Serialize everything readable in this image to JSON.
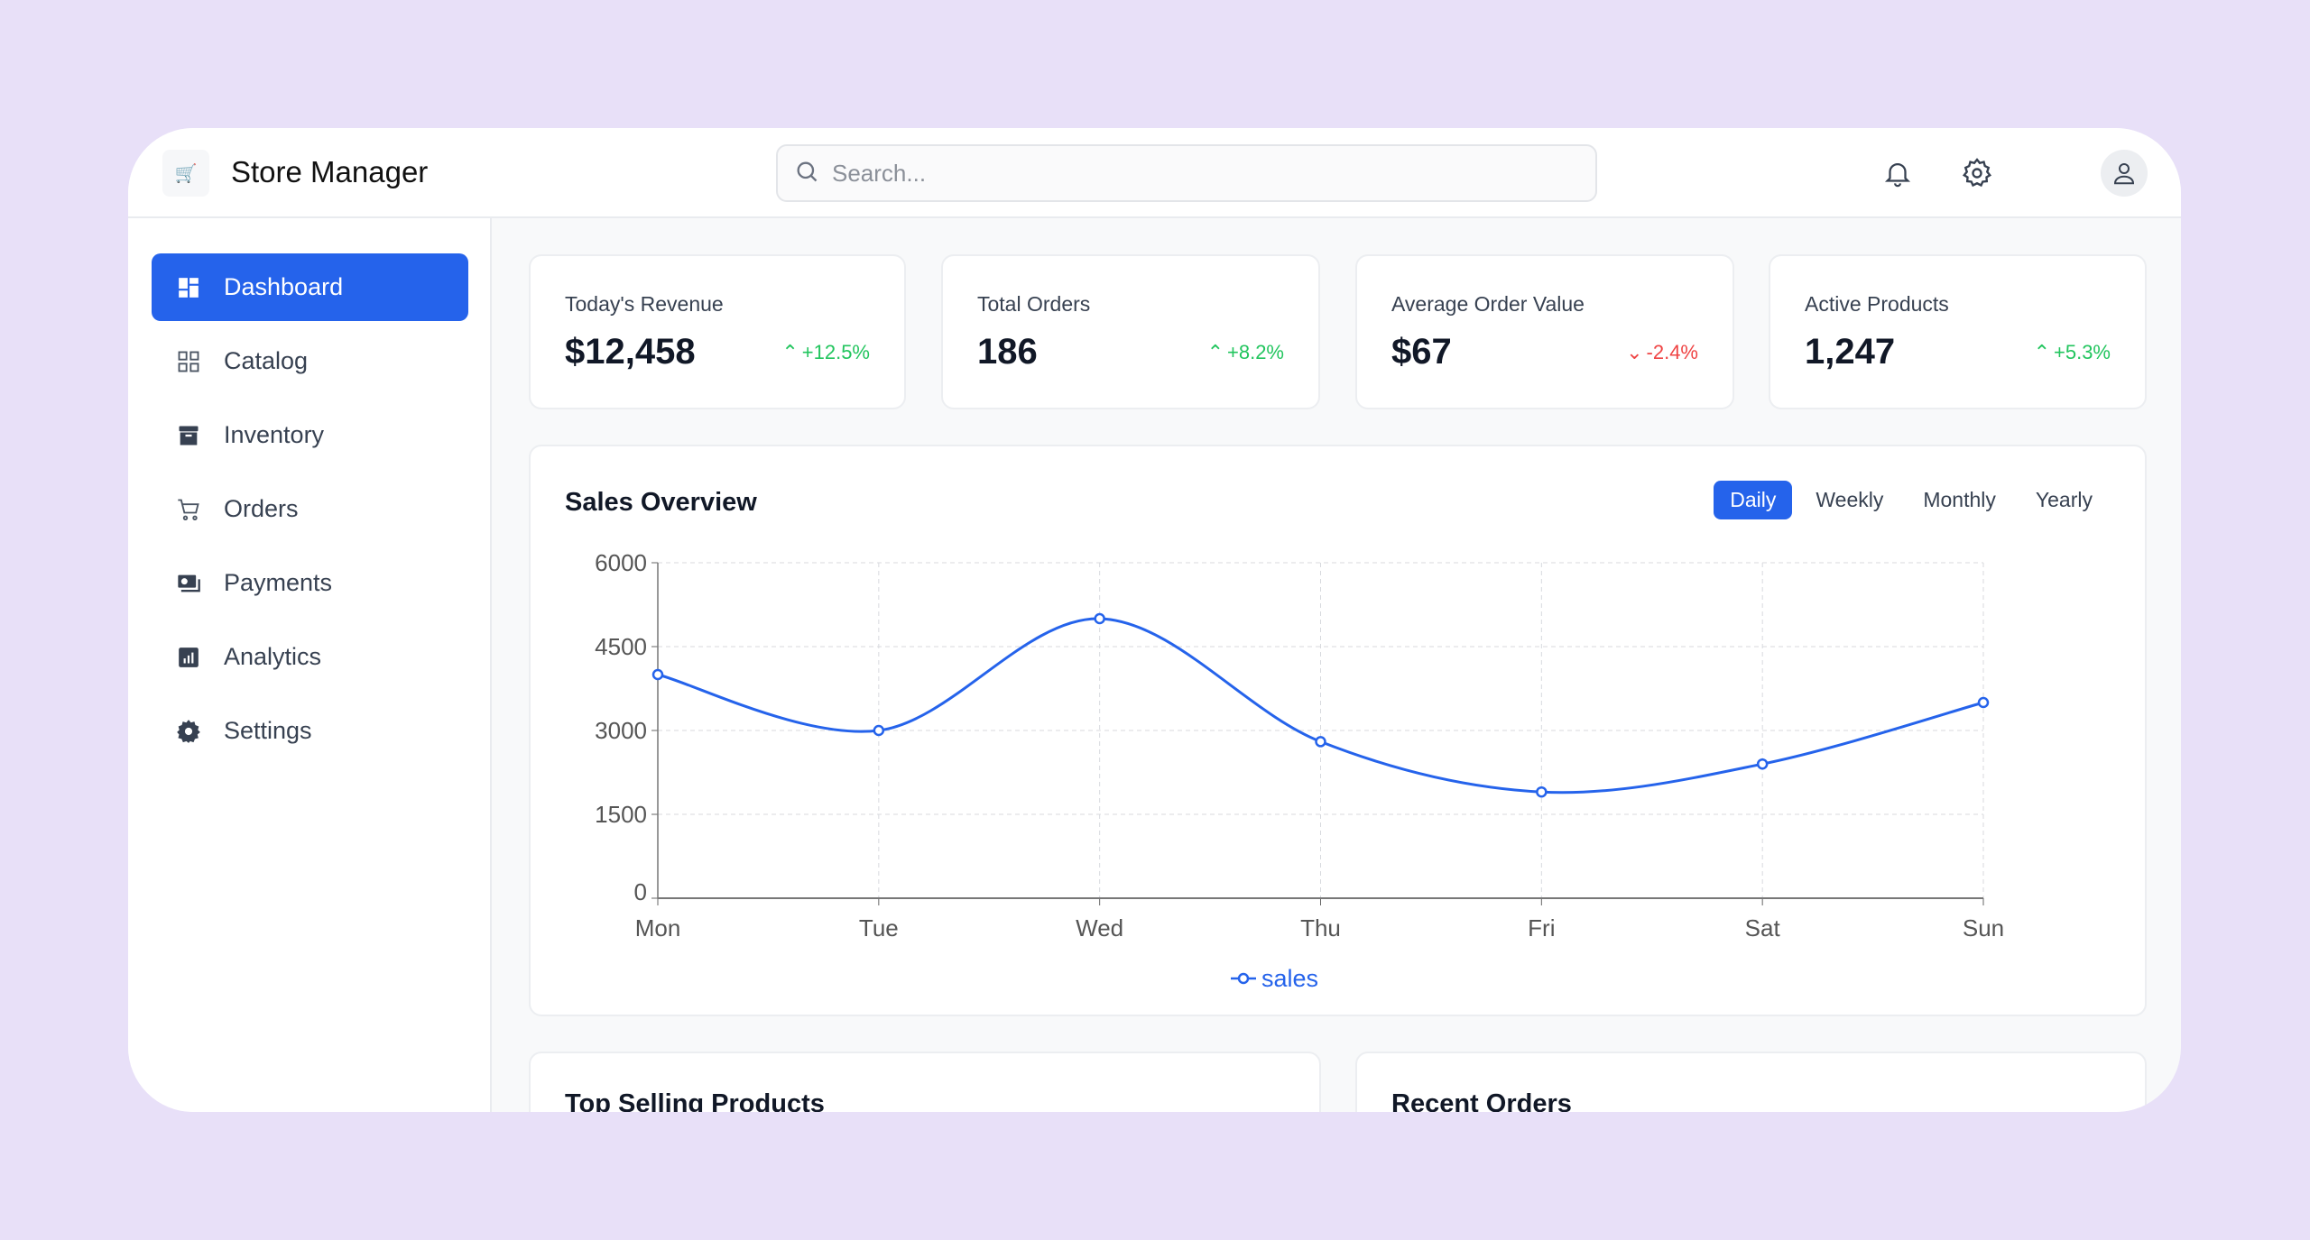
{
  "header": {
    "title": "Store Manager",
    "logo_icon": "cart-icon",
    "search_placeholder": "Search..."
  },
  "sidebar": {
    "items": [
      {
        "label": "Dashboard",
        "icon": "dashboard-icon",
        "active": true
      },
      {
        "label": "Catalog",
        "icon": "grid-icon"
      },
      {
        "label": "Inventory",
        "icon": "archive-icon"
      },
      {
        "label": "Orders",
        "icon": "cart-icon"
      },
      {
        "label": "Payments",
        "icon": "money-icon"
      },
      {
        "label": "Analytics",
        "icon": "chart-icon"
      },
      {
        "label": "Settings",
        "icon": "gear-icon"
      }
    ]
  },
  "stats": [
    {
      "label": "Today's Revenue",
      "value": "$12,458",
      "change": "+12.5%",
      "dir": "up"
    },
    {
      "label": "Total Orders",
      "value": "186",
      "change": "+8.2%",
      "dir": "up"
    },
    {
      "label": "Average Order Value",
      "value": "$67",
      "change": "-2.4%",
      "dir": "down"
    },
    {
      "label": "Active Products",
      "value": "1,247",
      "change": "+5.3%",
      "dir": "up"
    }
  ],
  "sales": {
    "title": "Sales Overview",
    "tabs": [
      "Daily",
      "Weekly",
      "Monthly",
      "Yearly"
    ],
    "active_tab": "Daily"
  },
  "chart_data": {
    "type": "line",
    "categories": [
      "Mon",
      "Tue",
      "Wed",
      "Thu",
      "Fri",
      "Sat",
      "Sun"
    ],
    "series": [
      {
        "name": "sales",
        "values": [
          4000,
          3000,
          5000,
          2800,
          1900,
          2400,
          3500
        ],
        "color": "#2563eb"
      }
    ],
    "ylim": [
      0,
      6000
    ],
    "yticks": [
      0,
      1500,
      3000,
      4500,
      6000
    ],
    "grid": true,
    "legend": "bottom-center"
  },
  "bottom": {
    "top_selling": "Top Selling Products",
    "recent_orders": "Recent Orders"
  }
}
